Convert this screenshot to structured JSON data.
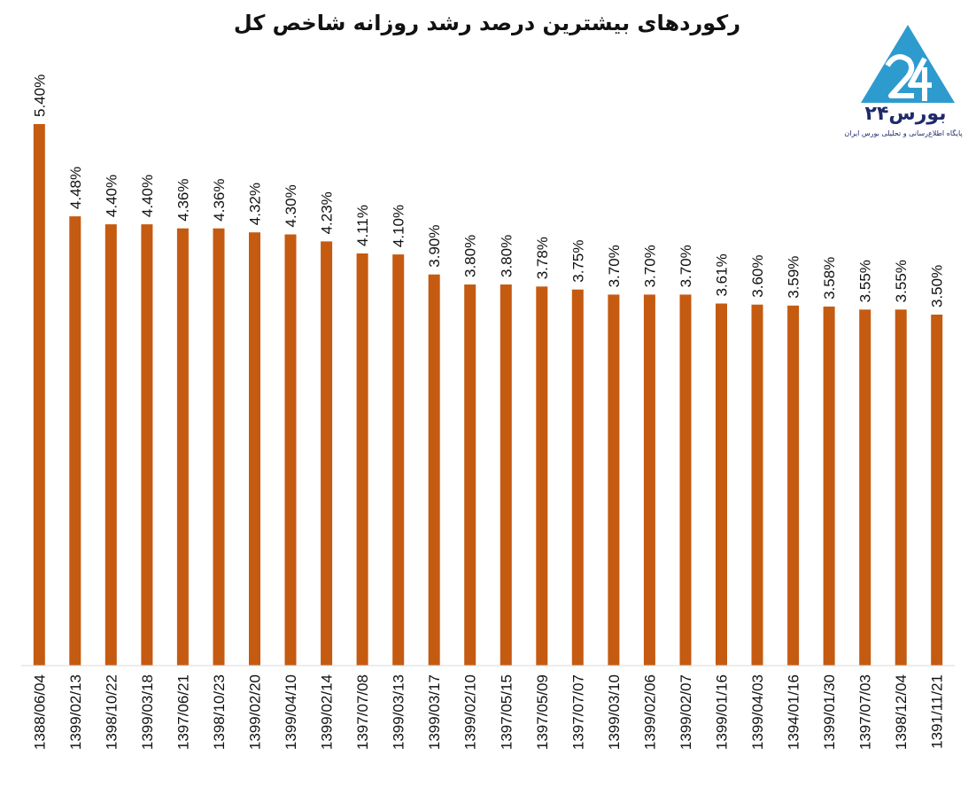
{
  "chart_data": {
    "type": "bar",
    "title": "رکوردهای بیشترین درصد رشد روزانه شاخص کل",
    "categories": [
      "1388/06/04",
      "1399/02/13",
      "1398/10/22",
      "1399/03/18",
      "1397/06/21",
      "1398/10/23",
      "1399/02/20",
      "1399/04/10",
      "1399/02/14",
      "1397/07/08",
      "1399/03/13",
      "1399/03/17",
      "1399/02/10",
      "1397/05/15",
      "1397/05/09",
      "1397/07/07",
      "1399/03/10",
      "1399/02/06",
      "1399/02/07",
      "1399/01/16",
      "1399/04/03",
      "1394/01/16",
      "1399/01/30",
      "1397/07/03",
      "1398/12/04",
      "1391/11/21"
    ],
    "values": [
      5.4,
      4.48,
      4.4,
      4.4,
      4.36,
      4.36,
      4.32,
      4.3,
      4.23,
      4.11,
      4.1,
      3.9,
      3.8,
      3.8,
      3.78,
      3.75,
      3.7,
      3.7,
      3.7,
      3.61,
      3.6,
      3.59,
      3.58,
      3.55,
      3.55,
      3.5
    ],
    "value_labels": [
      "5.40%",
      "4.48%",
      "4.40%",
      "4.40%",
      "4.36%",
      "4.36%",
      "4.32%",
      "4.30%",
      "4.23%",
      "4.11%",
      "4.10%",
      "3.90%",
      "3.80%",
      "3.80%",
      "3.78%",
      "3.75%",
      "3.70%",
      "3.70%",
      "3.70%",
      "3.61%",
      "3.60%",
      "3.59%",
      "3.58%",
      "3.55%",
      "3.55%",
      "3.50%"
    ],
    "bar_color": "#c55a11",
    "ylim": [
      0,
      5.4
    ],
    "grid": false,
    "legend": "none"
  },
  "logo": {
    "name": "بورس۲۴",
    "tagline": "پایگاه اطلاع‌رسانی و تحلیلی بورس ایران",
    "color": "#2e9bcf",
    "text_color": "#1f2a6b"
  }
}
